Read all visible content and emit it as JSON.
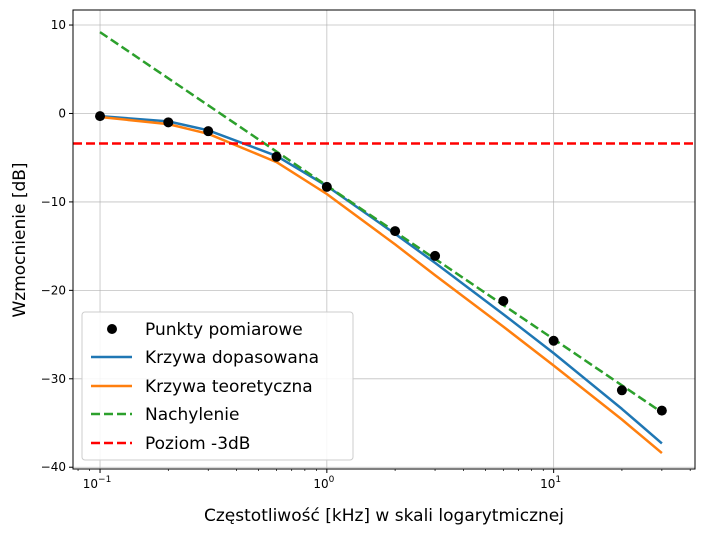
{
  "chart_data": {
    "type": "line",
    "title": "",
    "xlabel": "Częstotliwość [kHz] w skali logarytmicznej",
    "ylabel": "Wzmocnienie [dB]",
    "xscale": "log",
    "xlim": [
      0.076,
      42
    ],
    "ylim": [
      -40.2,
      11.7
    ],
    "grid": true,
    "legend_position": "lower-left",
    "x_ticks": [
      {
        "value": 0.1,
        "base": "10",
        "exp": "−1"
      },
      {
        "value": 1,
        "base": "10",
        "exp": "0"
      },
      {
        "value": 10,
        "base": "10",
        "exp": "1"
      }
    ],
    "y_ticks": [
      {
        "value": 10,
        "label": "10"
      },
      {
        "value": 0,
        "label": "0"
      },
      {
        "value": -10,
        "label": "−10"
      },
      {
        "value": -20,
        "label": "−20"
      },
      {
        "value": -30,
        "label": "−30"
      },
      {
        "value": -40,
        "label": "−40"
      }
    ],
    "series": [
      {
        "name": "Punkty pomiarowe",
        "style": "markers",
        "color": "#000000",
        "x": [
          0.1,
          0.2,
          0.3,
          0.6,
          1,
          2,
          3,
          6,
          10,
          20,
          30
        ],
        "y": [
          -0.3,
          -1.0,
          -2.0,
          -4.9,
          -8.3,
          -13.3,
          -16.1,
          -21.2,
          -25.7,
          -31.3,
          -33.6
        ]
      },
      {
        "name": "Krzywa dopasowana",
        "style": "solid",
        "color": "#1f77b4",
        "x": [
          0.1,
          0.2,
          0.3,
          0.6,
          1,
          2,
          3,
          6,
          10,
          20,
          30
        ],
        "y": [
          -0.3,
          -0.9,
          -1.9,
          -4.8,
          -8.2,
          -13.6,
          -16.9,
          -22.7,
          -27.1,
          -33.4,
          -37.3
        ]
      },
      {
        "name": "Krzywa teoretyczna",
        "style": "solid",
        "color": "#ff7f0e",
        "x": [
          0.1,
          0.2,
          0.3,
          0.6,
          1,
          2,
          3,
          6,
          10,
          20,
          30
        ],
        "y": [
          -0.4,
          -1.2,
          -2.3,
          -5.5,
          -9.1,
          -14.8,
          -18.3,
          -24.1,
          -28.5,
          -34.6,
          -38.4
        ]
      },
      {
        "name": "Nachylenie",
        "style": "dashed",
        "color": "#2ca02c",
        "x": [
          0.1,
          30
        ],
        "y": [
          9.2,
          -33.8
        ]
      },
      {
        "name": "Poziom -3dB",
        "style": "dashed-horizontal",
        "color": "#ff0000",
        "y_value": -3.4
      }
    ]
  }
}
